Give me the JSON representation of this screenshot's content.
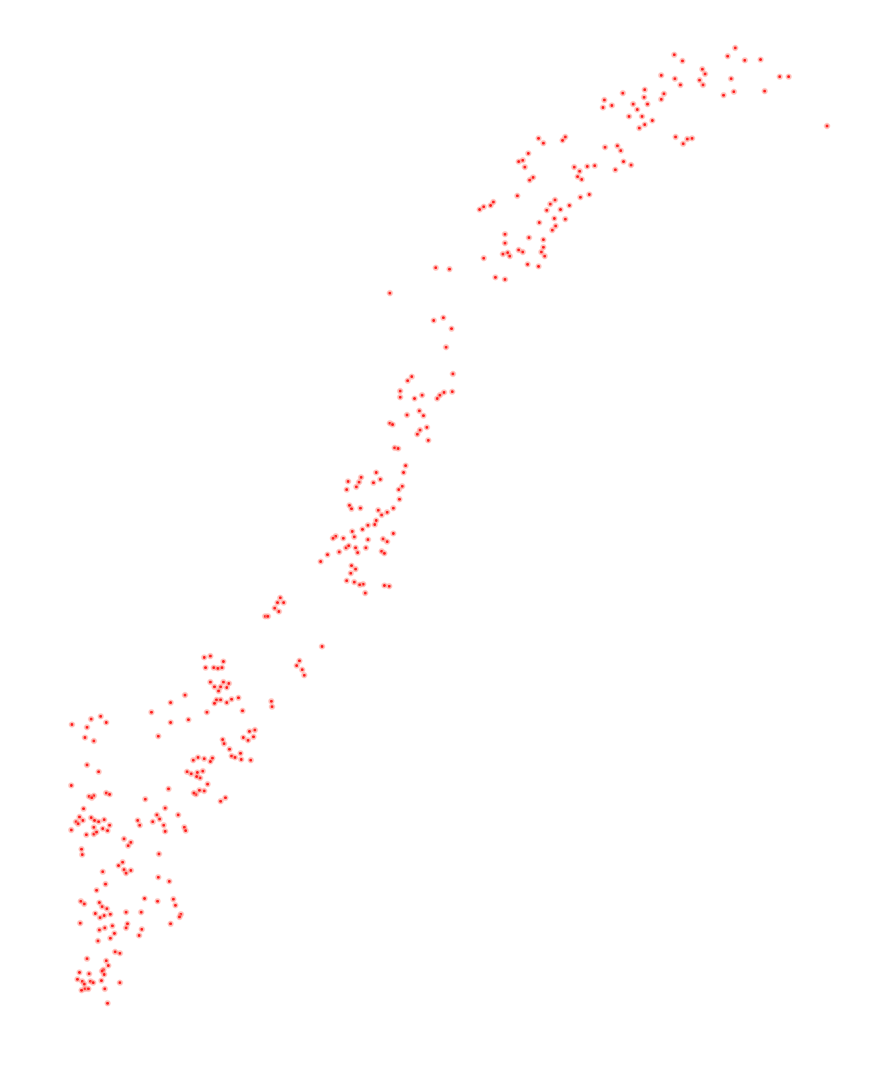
{
  "map": {
    "background_color": "#ffffff",
    "marker_color": "#ff1a1a",
    "marker_glow_color": "#ff8a80",
    "marker_shape": "dot",
    "labels_visible": false,
    "basemap_visible": false
  }
}
